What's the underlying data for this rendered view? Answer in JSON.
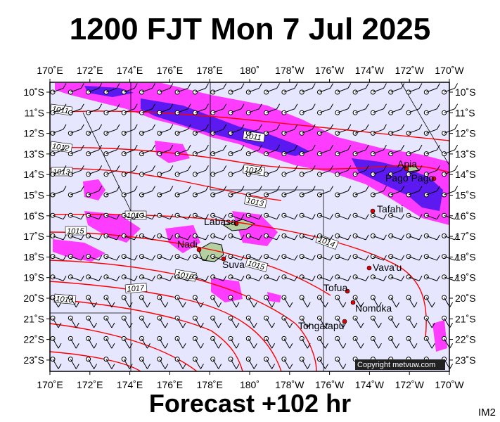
{
  "title": "1200 FJT Mon 7 Jul 2025",
  "footer": "Forecast +102 hr",
  "product_code": "IM2",
  "copyright": "Copyright metvuw.com",
  "map": {
    "lon_labels": [
      "170˚E",
      "172˚E",
      "174˚E",
      "176˚E",
      "178˚E",
      "180˚",
      "178˚W",
      "176˚W",
      "174˚W",
      "172˚W",
      "170˚W"
    ],
    "lat_labels": [
      "10˚S",
      "11˚S",
      "12˚S",
      "13˚S",
      "14˚S",
      "15˚S",
      "16˚S",
      "17˚S",
      "18˚S",
      "19˚S",
      "20˚S",
      "21˚S",
      "22˚S",
      "23˚S"
    ],
    "isobar_labels": [
      "1011",
      "1011",
      "1012",
      "1012",
      "1013",
      "1013",
      "1014",
      "1014",
      "1015",
      "1015",
      "1016",
      "1016",
      "1017",
      "1018"
    ],
    "places": [
      "Apia",
      "Pago Pago",
      "Tafahi",
      "Labasa",
      "Nadi",
      "Suva",
      "Vava'u",
      "Tofua",
      "Nomuka",
      "Tongatapu"
    ],
    "colors": {
      "background": "#e6e6ff",
      "rain_light": "#ff33ff",
      "rain_heavy": "#3311ee",
      "isobar": "#ff0000",
      "land": "#b4cfa0"
    }
  }
}
